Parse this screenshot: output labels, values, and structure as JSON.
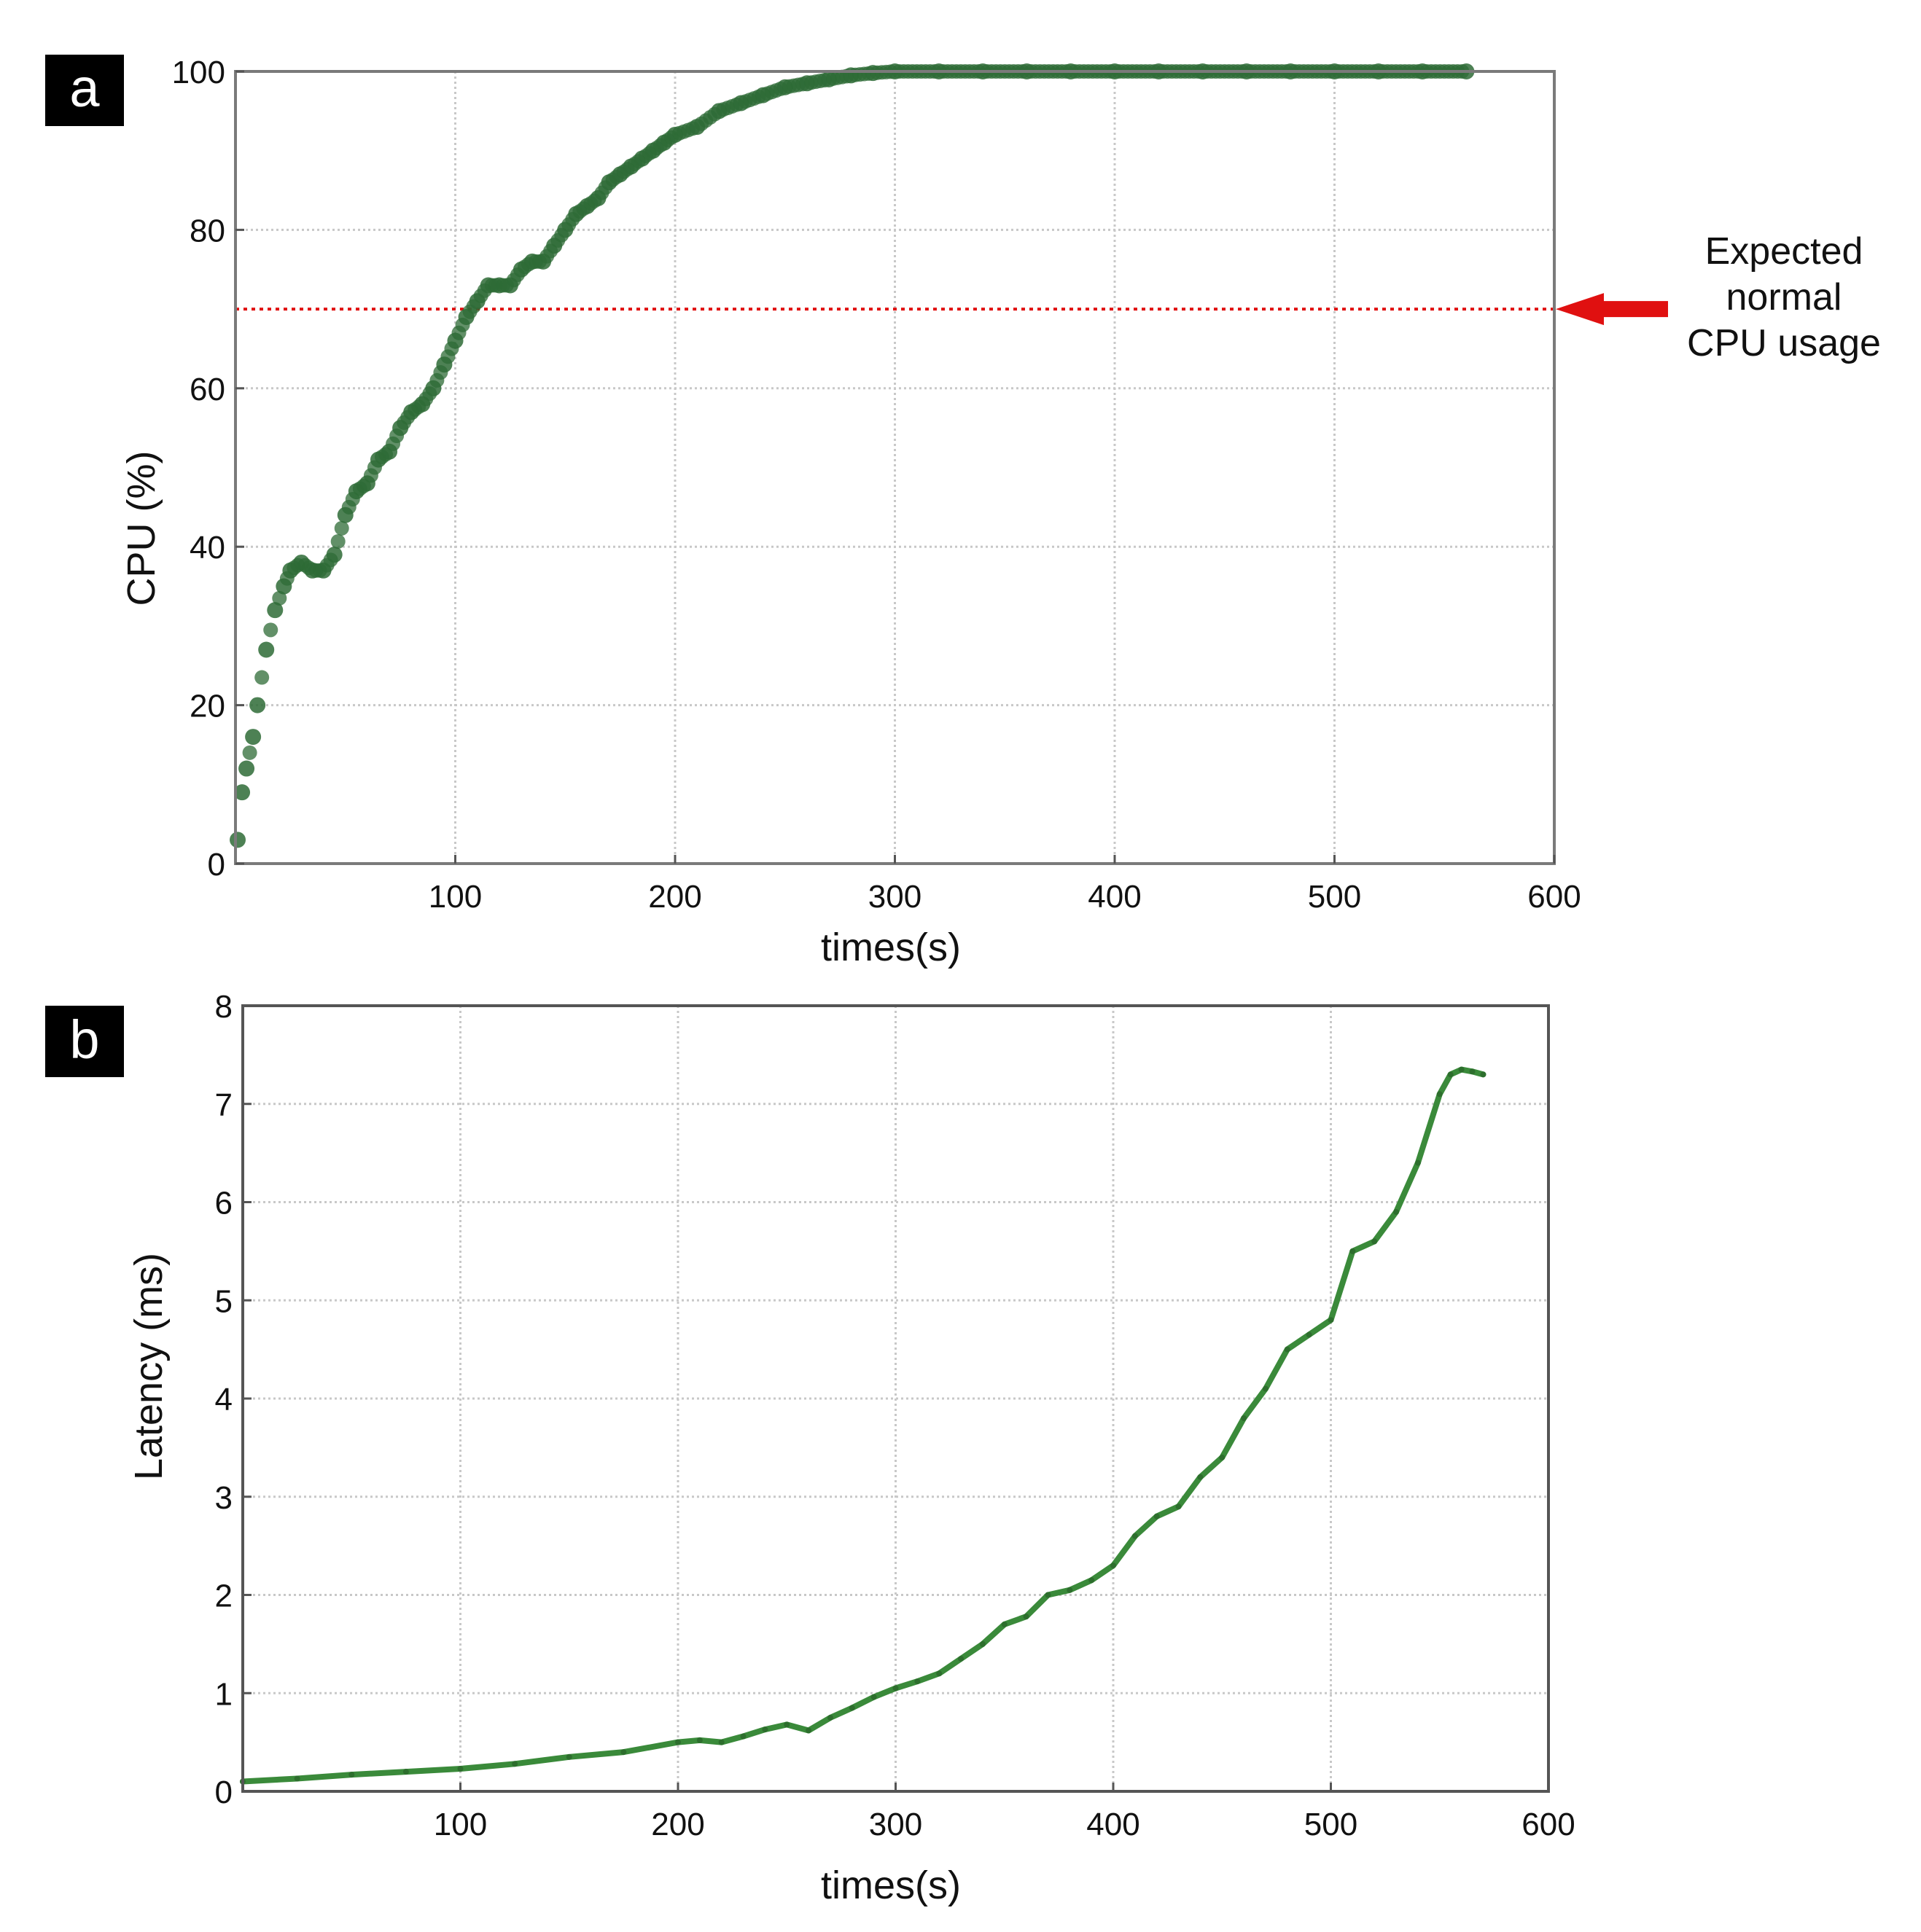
{
  "chart_data": [
    {
      "panel_label": "a",
      "type": "scatter",
      "title": "",
      "xlabel": "times(s)",
      "ylabel": "CPU (%)",
      "xlim": [
        0,
        600
      ],
      "ylim": [
        0,
        100
      ],
      "xticks": [
        100,
        200,
        300,
        400,
        500,
        600
      ],
      "yticks": [
        0,
        20,
        40,
        60,
        80,
        100
      ],
      "grid": true,
      "threshold": {
        "y": 70,
        "annotation_lines": [
          "Expected",
          "normal",
          "CPU usage"
        ]
      },
      "colors": {
        "series": "#2e6b36",
        "threshold": "#e01010",
        "arrow": "#e01010"
      },
      "series": [
        {
          "name": "CPU",
          "x": [
            1,
            3,
            5,
            8,
            10,
            14,
            18,
            22,
            25,
            30,
            35,
            40,
            45,
            50,
            55,
            60,
            65,
            70,
            75,
            80,
            85,
            90,
            95,
            100,
            105,
            110,
            115,
            120,
            125,
            130,
            135,
            140,
            145,
            150,
            155,
            160,
            165,
            170,
            175,
            180,
            185,
            190,
            195,
            200,
            210,
            220,
            230,
            240,
            250,
            260,
            270,
            280,
            290,
            300,
            320,
            340,
            360,
            380,
            400,
            420,
            440,
            460,
            480,
            500,
            520,
            540,
            560
          ],
          "y": [
            3,
            9,
            12,
            16,
            20,
            27,
            32,
            35,
            37,
            38,
            37,
            37,
            39,
            44,
            47,
            48,
            51,
            52,
            55,
            57,
            58,
            60,
            63,
            66,
            69,
            71,
            73,
            73,
            73,
            75,
            76,
            76,
            78,
            80,
            82,
            83,
            84,
            86,
            87,
            88,
            89,
            90,
            91,
            92,
            93,
            95,
            96,
            97,
            98,
            98.5,
            99,
            99.5,
            99.8,
            100,
            100,
            100,
            100,
            100,
            100,
            100,
            100,
            100,
            100,
            100,
            100,
            100,
            100
          ]
        }
      ]
    },
    {
      "panel_label": "b",
      "type": "line",
      "title": "",
      "xlabel": "times(s)",
      "ylabel": "Latency (ms)",
      "xlim": [
        0,
        600
      ],
      "ylim": [
        0,
        8
      ],
      "xticks": [
        100,
        200,
        300,
        400,
        500,
        600
      ],
      "yticks": [
        0,
        1,
        2,
        3,
        4,
        5,
        6,
        7,
        8
      ],
      "grid": true,
      "colors": {
        "series": "#3a8a3a"
      },
      "series": [
        {
          "name": "Latency",
          "x": [
            0,
            25,
            50,
            75,
            100,
            125,
            150,
            175,
            200,
            210,
            220,
            230,
            240,
            250,
            260,
            270,
            280,
            290,
            300,
            310,
            320,
            330,
            340,
            350,
            360,
            370,
            380,
            390,
            400,
            410,
            420,
            430,
            440,
            450,
            460,
            470,
            480,
            490,
            500,
            510,
            520,
            530,
            540,
            550,
            555,
            560,
            565,
            570
          ],
          "y": [
            0.1,
            0.13,
            0.17,
            0.2,
            0.23,
            0.28,
            0.35,
            0.4,
            0.5,
            0.52,
            0.5,
            0.56,
            0.63,
            0.68,
            0.62,
            0.75,
            0.85,
            0.96,
            1.05,
            1.12,
            1.2,
            1.35,
            1.5,
            1.7,
            1.78,
            2.0,
            2.05,
            2.15,
            2.3,
            2.6,
            2.8,
            2.9,
            3.2,
            3.4,
            3.8,
            4.1,
            4.5,
            4.65,
            4.8,
            5.5,
            5.6,
            5.9,
            6.4,
            7.1,
            7.3,
            7.35,
            7.33,
            7.3
          ]
        }
      ]
    }
  ]
}
